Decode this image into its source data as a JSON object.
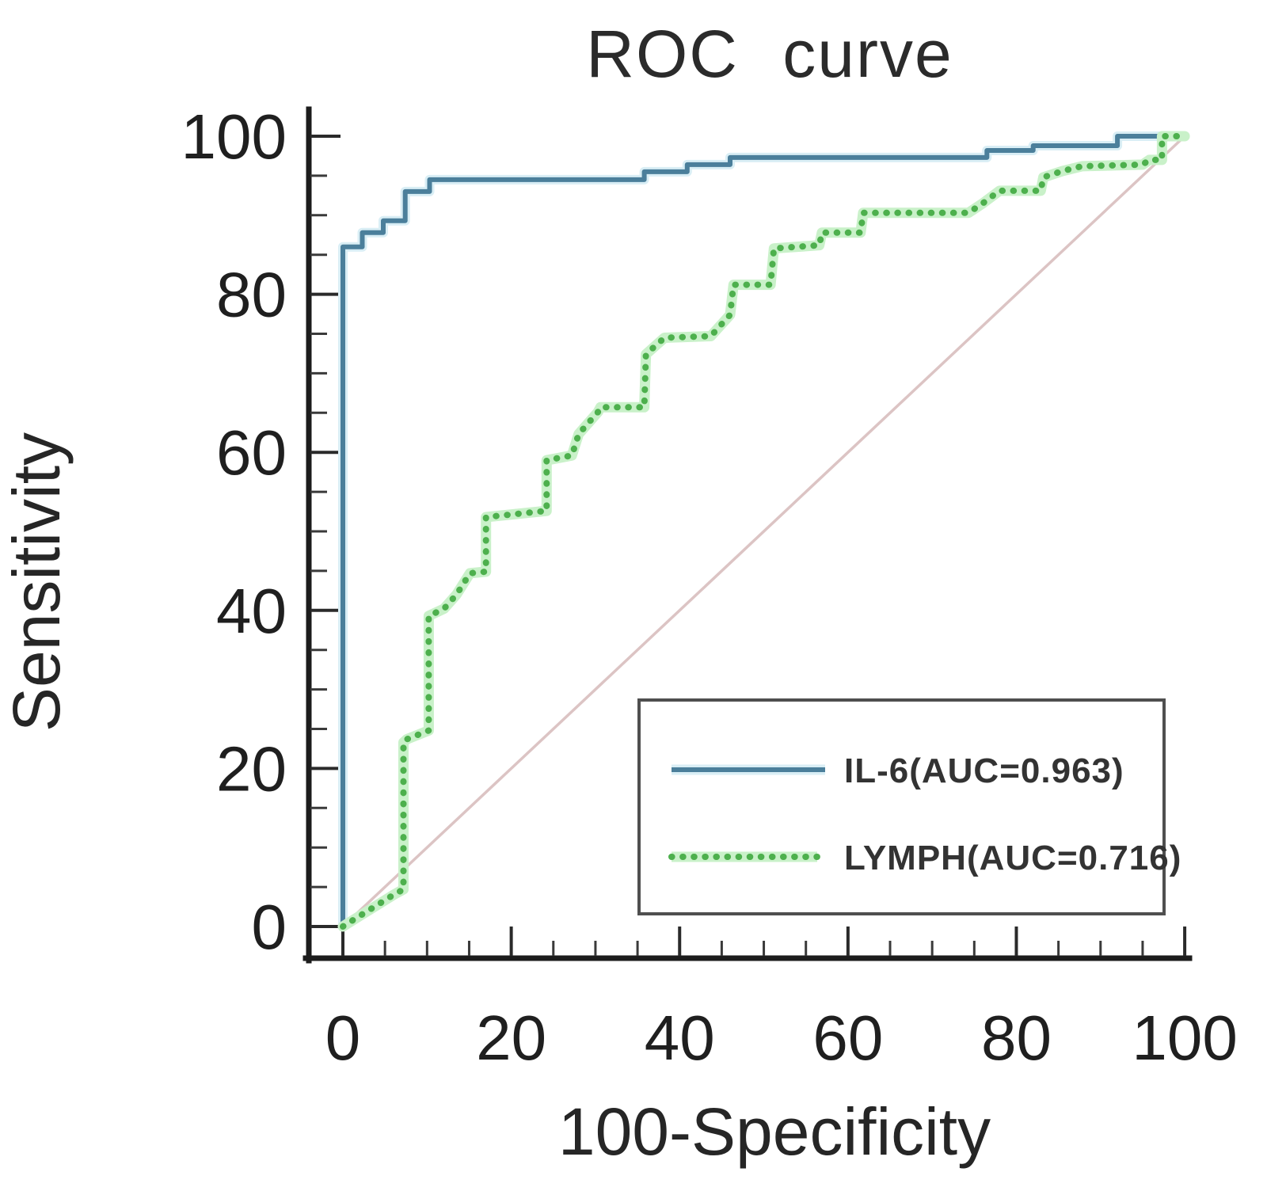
{
  "title": "ROC curve",
  "axes": {
    "x_label": "100-Specificity",
    "y_label": "Sensitivity",
    "x_ticks": [
      0,
      20,
      40,
      60,
      80,
      100
    ],
    "y_ticks": [
      0,
      20,
      40,
      60,
      80,
      100
    ],
    "minor_tick_step": 5,
    "x_range": [
      0,
      100
    ],
    "y_range": [
      0,
      100
    ]
  },
  "legend": {
    "items": [
      {
        "label": "IL-6(AUC=0.963)",
        "series": "IL-6",
        "auc": 0.963,
        "style": "solid",
        "color": "#4b7f9b"
      },
      {
        "label": "LYMPH(AUC=0.716)",
        "series": "LYMPH",
        "auc": 0.716,
        "style": "dotted",
        "color": "#4db04d"
      }
    ]
  },
  "colors": {
    "il6_line": "#4b7f9b",
    "il6_halo": "#d9eef5",
    "lymph_line": "#4db04d",
    "lymph_halo": "#c9f1c9",
    "reference_line": "#dcc4c4",
    "axis": "#1c1c1c",
    "text": "#2b2b2b",
    "legend_border": "#4f4f4f"
  },
  "chart_data": {
    "type": "line",
    "title": "ROC curve",
    "xlabel": "100-Specificity",
    "ylabel": "Sensitivity",
    "xlim": [
      0,
      100
    ],
    "ylim": [
      0,
      100
    ],
    "grid": false,
    "legend_position": "lower-right",
    "series": [
      {
        "name": "reference",
        "line_style": "solid",
        "color": "#dcc4c4",
        "points": [
          [
            0,
            0
          ],
          [
            100,
            100
          ]
        ]
      },
      {
        "name": "IL-6",
        "auc": 0.963,
        "line_style": "solid",
        "color": "#4b7f9b",
        "halo": "#d9eef5",
        "points": [
          [
            0,
            0
          ],
          [
            0,
            86
          ],
          [
            2.3,
            86
          ],
          [
            2.3,
            87.8
          ],
          [
            4.8,
            87.8
          ],
          [
            4.8,
            89.3
          ],
          [
            7.4,
            89.3
          ],
          [
            7.4,
            93
          ],
          [
            10.3,
            93
          ],
          [
            10.3,
            94.5
          ],
          [
            35.8,
            94.5
          ],
          [
            35.8,
            95.5
          ],
          [
            40.9,
            95.5
          ],
          [
            40.9,
            96.4
          ],
          [
            46,
            96.4
          ],
          [
            46,
            97.3
          ],
          [
            76.5,
            97.3
          ],
          [
            76.5,
            98.2
          ],
          [
            82,
            98.2
          ],
          [
            82,
            98.8
          ],
          [
            92,
            98.8
          ],
          [
            92,
            100
          ],
          [
            100,
            100
          ]
        ]
      },
      {
        "name": "LYMPH",
        "auc": 0.716,
        "line_style": "dotted",
        "color": "#4db04d",
        "halo": "#c9f1c9",
        "points": [
          [
            0,
            0
          ],
          [
            1.5,
            1
          ],
          [
            3,
            2
          ],
          [
            4.5,
            3
          ],
          [
            6,
            4
          ],
          [
            7.2,
            4.7
          ],
          [
            7.2,
            23.3
          ],
          [
            7.6,
            23.7
          ],
          [
            10.2,
            24.8
          ],
          [
            10.2,
            39.3
          ],
          [
            12,
            40.2
          ],
          [
            13.5,
            42
          ],
          [
            15.1,
            44.7
          ],
          [
            17,
            44.9
          ],
          [
            17,
            51.8
          ],
          [
            24.2,
            52.6
          ],
          [
            24.2,
            59
          ],
          [
            27.2,
            59.6
          ],
          [
            28,
            62.3
          ],
          [
            30.3,
            65.1
          ],
          [
            30.6,
            65.7
          ],
          [
            35.8,
            65.7
          ],
          [
            36,
            72.4
          ],
          [
            38.2,
            74.5
          ],
          [
            43.7,
            74.7
          ],
          [
            46,
            77.4
          ],
          [
            46.4,
            81.2
          ],
          [
            50.8,
            81.2
          ],
          [
            51.2,
            85.8
          ],
          [
            56.6,
            86.2
          ],
          [
            56.9,
            87.8
          ],
          [
            61.5,
            87.8
          ],
          [
            61.8,
            90.3
          ],
          [
            74.3,
            90.3
          ],
          [
            76,
            91.5
          ],
          [
            78,
            93.1
          ],
          [
            82.9,
            93.1
          ],
          [
            83.2,
            94.8
          ],
          [
            85.5,
            95.6
          ],
          [
            87.8,
            96.2
          ],
          [
            95,
            96.4
          ],
          [
            95.8,
            97
          ],
          [
            97.3,
            97
          ],
          [
            97.3,
            100
          ],
          [
            100,
            100
          ]
        ]
      }
    ]
  }
}
